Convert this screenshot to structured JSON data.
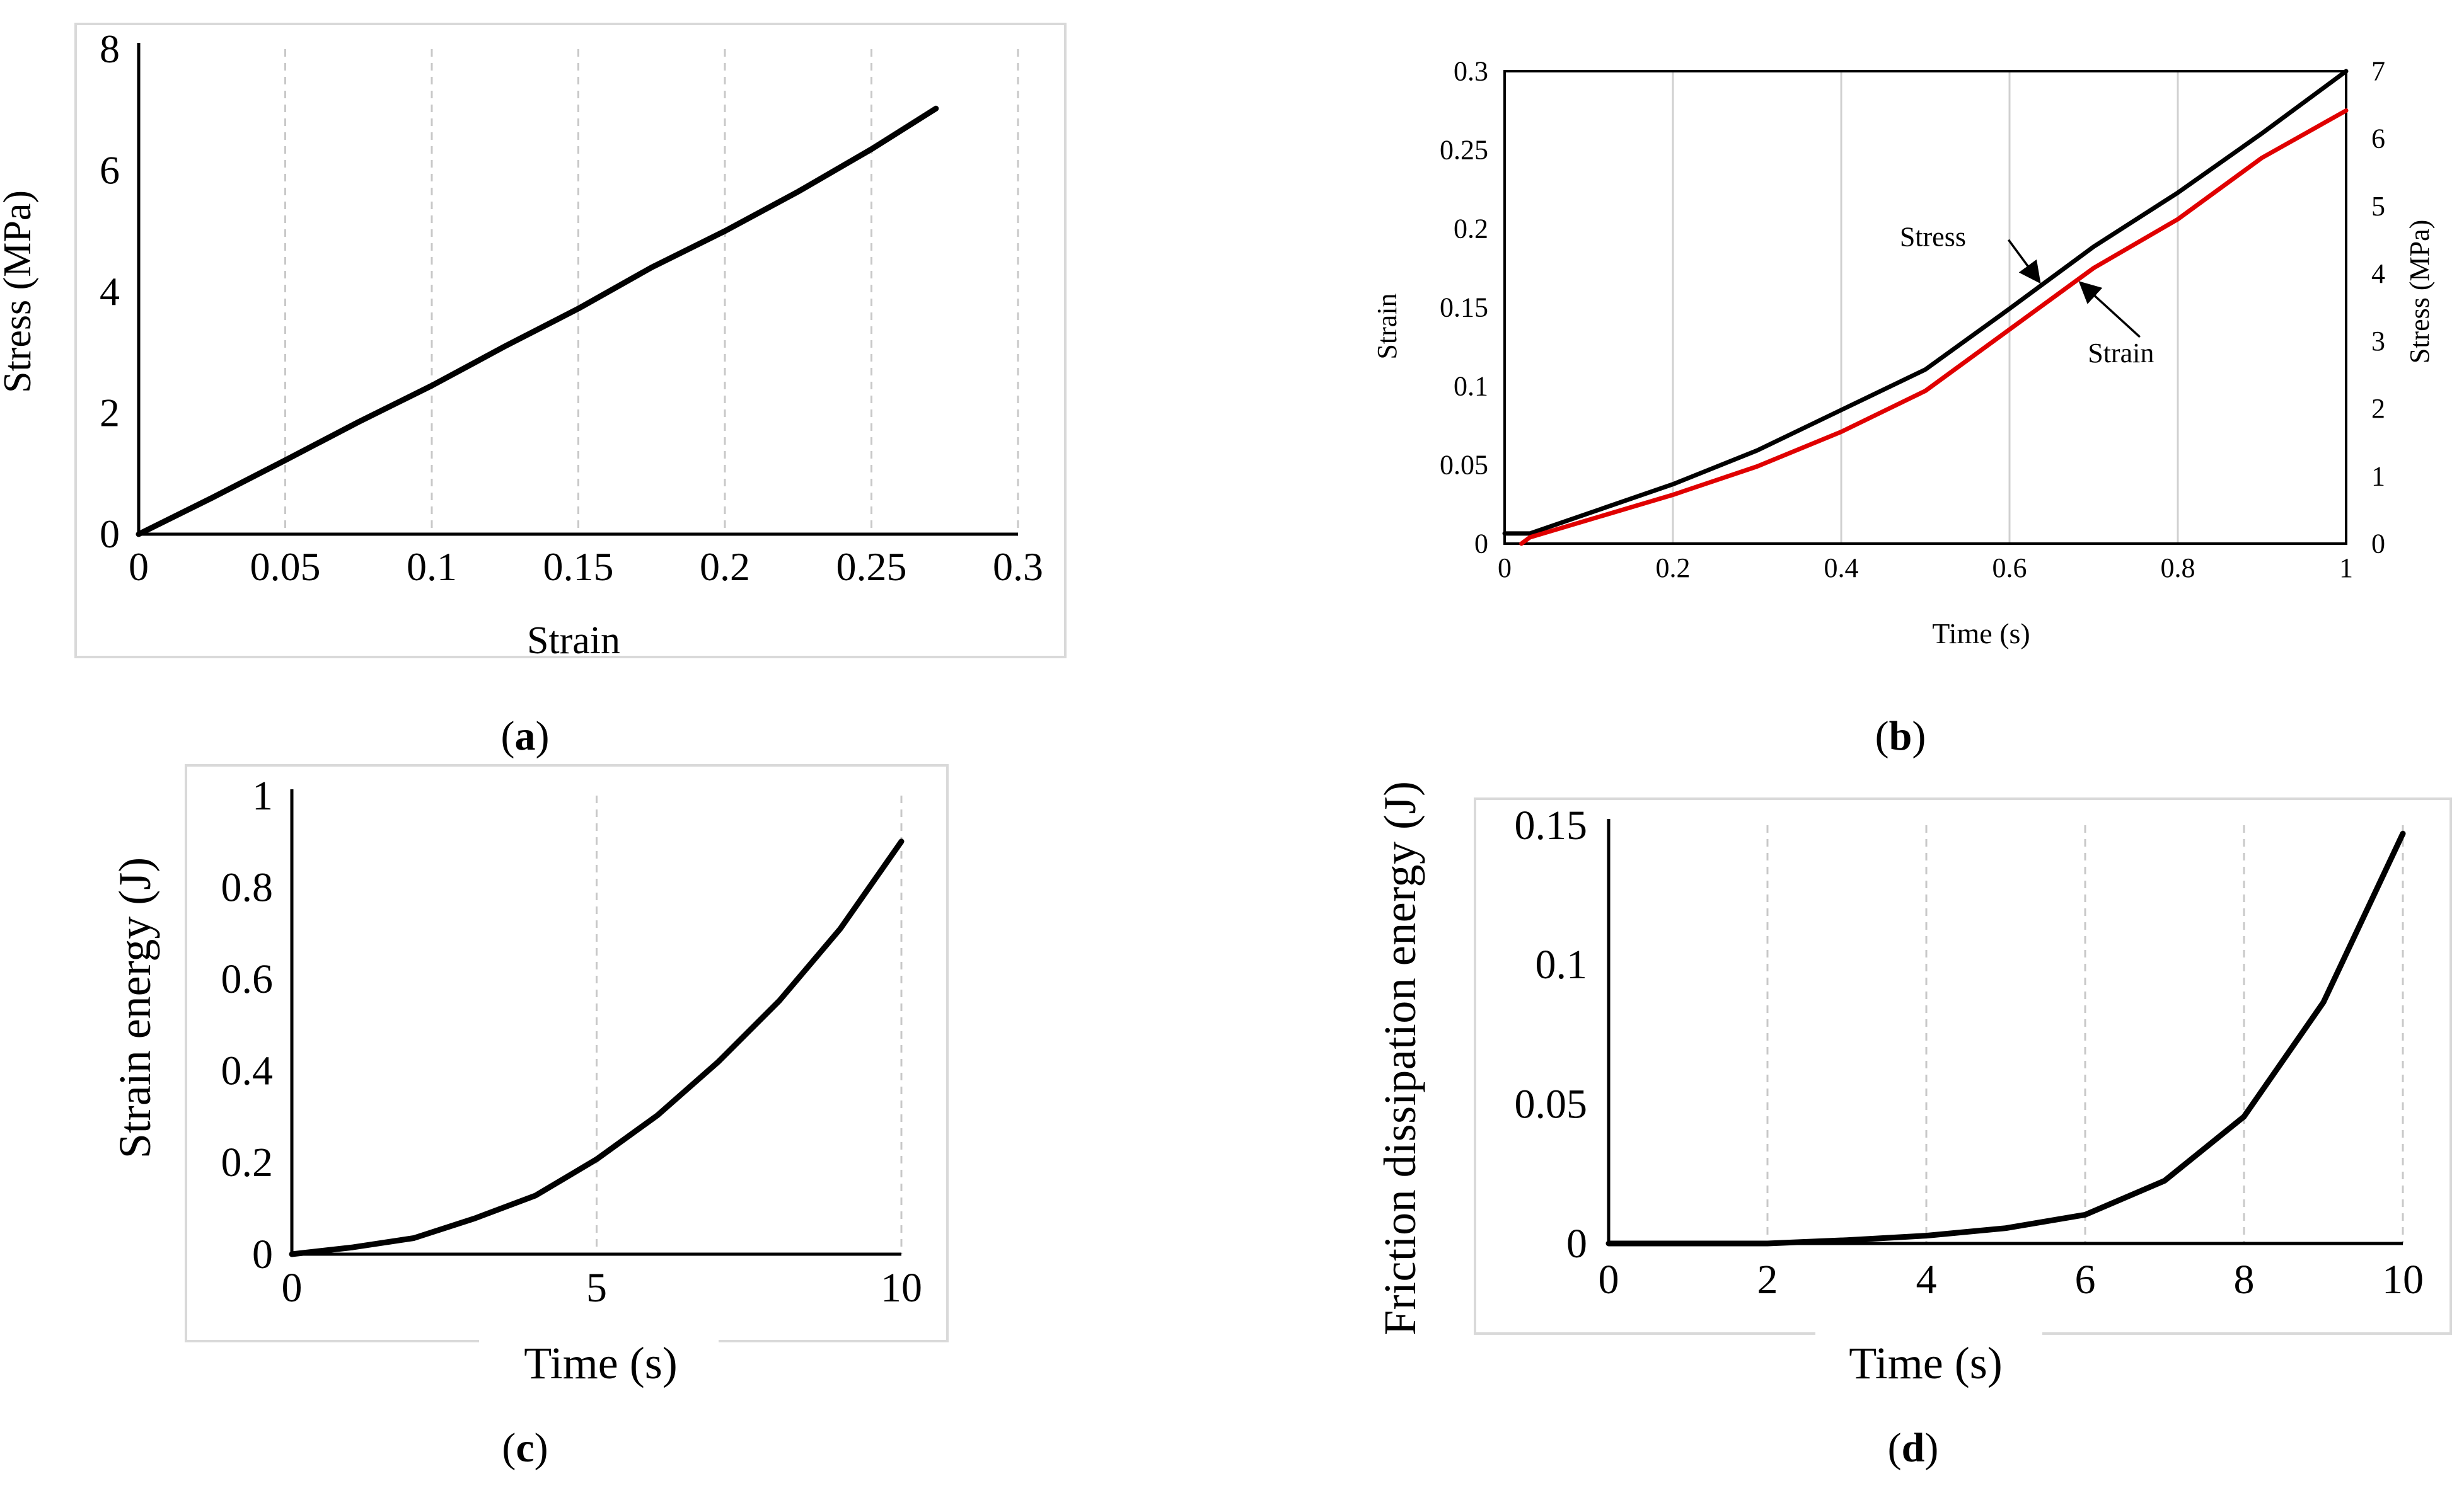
{
  "chart_data": [
    {
      "type": "line",
      "panel_label": "a",
      "xlabel": "Strain",
      "ylabel": "Stress (MPa)",
      "xlim": [
        0,
        0.3
      ],
      "ylim": [
        0,
        8
      ],
      "xticks": [
        "0",
        "0.05",
        "0.1",
        "0.15",
        "0.2",
        "0.25",
        "0.3"
      ],
      "yticks": [
        "0",
        "2",
        "4",
        "6",
        "8"
      ],
      "grid": "vertical dashed",
      "series": [
        {
          "name": "Stress",
          "color": "#000000",
          "x": [
            0,
            0.025,
            0.05,
            0.075,
            0.1,
            0.125,
            0.15,
            0.175,
            0.2,
            0.225,
            0.25,
            0.272
          ],
          "y": [
            0,
            0.6,
            1.22,
            1.85,
            2.45,
            3.1,
            3.72,
            4.4,
            5.0,
            5.65,
            6.35,
            7.02
          ]
        }
      ]
    },
    {
      "type": "line",
      "panel_label": "b",
      "xlabel": "Time (s)",
      "ylabel": "Strain",
      "y2label": "Stress (MPa)",
      "xlim": [
        0,
        1
      ],
      "ylim": [
        0,
        0.3
      ],
      "y2lim": [
        0,
        7
      ],
      "xticks": [
        "0",
        "0.2",
        "0.4",
        "0.6",
        "0.8",
        "1"
      ],
      "yticks": [
        "0",
        "0.05",
        "0.1",
        "0.15",
        "0.2",
        "0.25",
        "0.3"
      ],
      "y2ticks": [
        "0",
        "1",
        "2",
        "3",
        "4",
        "5",
        "6",
        "7"
      ],
      "grid": "vertical solid",
      "series": [
        {
          "name": "Stress",
          "axis": "right",
          "color": "#000000",
          "x": [
            0,
            0.03,
            0.2,
            0.3,
            0.4,
            0.5,
            0.6,
            0.7,
            0.8,
            0.9,
            1.0
          ],
          "y": [
            0.15,
            0.15,
            0.88,
            1.38,
            1.98,
            2.58,
            3.48,
            4.4,
            5.2,
            6.08,
            7.0
          ]
        },
        {
          "name": "Strain",
          "axis": "left",
          "color": "#e00000",
          "x": [
            0.02,
            0.03,
            0.2,
            0.3,
            0.4,
            0.5,
            0.6,
            0.7,
            0.8,
            0.9,
            1.0
          ],
          "y": [
            0,
            0.004,
            0.031,
            0.049,
            0.071,
            0.097,
            0.136,
            0.175,
            0.206,
            0.245,
            0.275
          ]
        }
      ],
      "annotations": [
        {
          "text": "Stress",
          "target_series": "Stress",
          "target_x": 0.64
        },
        {
          "text": "Strain",
          "target_series": "Strain",
          "target_x": 0.68
        }
      ]
    },
    {
      "type": "line",
      "panel_label": "c",
      "xlabel": "Time (s)",
      "ylabel": "Strain energy (J)",
      "xlim": [
        0,
        10
      ],
      "ylim": [
        0,
        1
      ],
      "xticks": [
        "0",
        "5",
        "10"
      ],
      "yticks": [
        "0",
        "0.2",
        "0.4",
        "0.6",
        "0.8",
        "1"
      ],
      "grid": "vertical dashed",
      "series": [
        {
          "name": "Strain energy",
          "color": "#000000",
          "x": [
            0,
            1,
            2,
            3,
            4,
            5,
            6,
            7,
            8,
            9,
            10
          ],
          "y": [
            0,
            0.015,
            0.035,
            0.078,
            0.128,
            0.207,
            0.303,
            0.42,
            0.553,
            0.71,
            0.9
          ]
        }
      ]
    },
    {
      "type": "line",
      "panel_label": "d",
      "xlabel": "Time (s)",
      "ylabel": "Friction dissipation energy (J)",
      "xlim": [
        0,
        10
      ],
      "ylim": [
        0,
        0.15
      ],
      "xticks": [
        "0",
        "2",
        "4",
        "6",
        "8",
        "10"
      ],
      "yticks": [
        "0",
        "0.05",
        "0.1",
        "0.15"
      ],
      "grid": "vertical dashed",
      "series": [
        {
          "name": "Friction dissipation energy",
          "color": "#000000",
          "x": [
            0,
            1,
            2,
            3,
            4,
            5,
            6,
            7,
            8,
            9,
            10
          ],
          "y": [
            0,
            0,
            0,
            0.0012,
            0.0028,
            0.0055,
            0.0103,
            0.0225,
            0.0455,
            0.0865,
            0.147
          ]
        }
      ]
    }
  ]
}
